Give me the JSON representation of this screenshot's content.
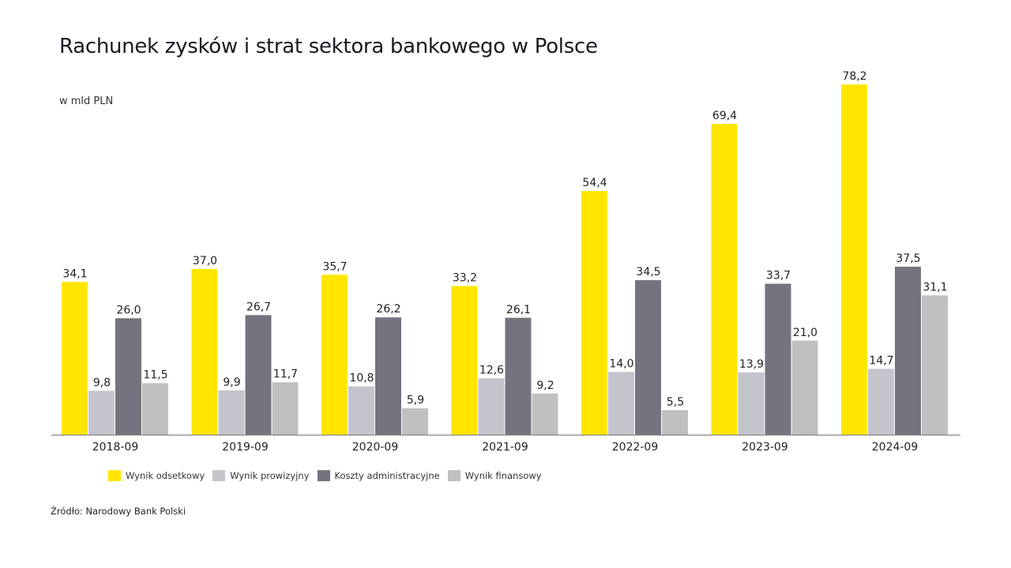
{
  "chart_data": {
    "type": "bar",
    "title": "Rachunek zysków i strat sektora bankowego w Polsce",
    "subtitle": "w mld PLN",
    "categories": [
      "2018-09",
      "2019-09",
      "2020-09",
      "2021-09",
      "2022-09",
      "2023-09",
      "2024-09"
    ],
    "series": [
      {
        "name": "Wynik odsetkowy",
        "color": "#FFE600",
        "values": [
          34.1,
          37.0,
          35.7,
          33.2,
          54.4,
          69.4,
          78.2
        ],
        "labels": [
          "34,1",
          "37,0",
          "35,7",
          "33,2",
          "54,4",
          "69,4",
          "78,2"
        ]
      },
      {
        "name": "Wynik prowizyjny",
        "color": "#C4C4CD",
        "values": [
          9.8,
          9.9,
          10.8,
          12.6,
          14.0,
          13.9,
          14.7
        ],
        "labels": [
          "9,8",
          "9,9",
          "10,8",
          "12,6",
          "14,0",
          "13,9",
          "14,7"
        ]
      },
      {
        "name": "Koszty administracyjne",
        "color": "#747480",
        "values": [
          26.0,
          26.7,
          26.2,
          26.1,
          34.5,
          33.7,
          37.5
        ],
        "labels": [
          "26,0",
          "26,7",
          "26,2",
          "26,1",
          "34,5",
          "33,7",
          "37,5"
        ]
      },
      {
        "name": "Wynik finansowy",
        "color": "#C0C0C0",
        "values": [
          11.5,
          11.7,
          5.9,
          9.2,
          5.5,
          21.0,
          31.1
        ],
        "labels": [
          "11,5",
          "11,7",
          "5,9",
          "9,2",
          "5,5",
          "21,0",
          "31,1"
        ]
      }
    ],
    "ylim": [
      0,
      80
    ],
    "grid": false,
    "legend_position": "bottom",
    "source": "Źródło: Narodowy Bank Polski"
  }
}
